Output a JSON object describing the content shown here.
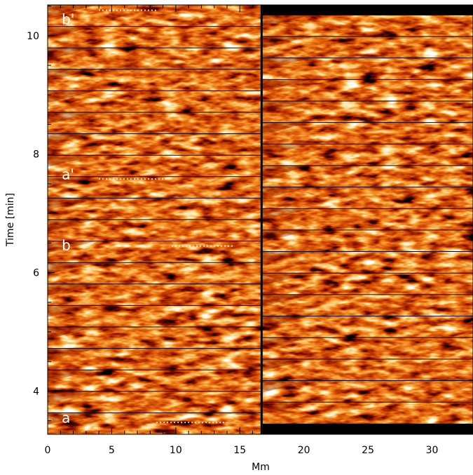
{
  "chart_data": {
    "type": "heatmap",
    "title": "",
    "xlabel": "Mm",
    "ylabel": "Time [min]",
    "xlim": [
      0,
      33.2
    ],
    "ylim": [
      3.27,
      10.52
    ],
    "x_ticks": [
      0,
      5,
      10,
      15,
      20,
      25,
      30
    ],
    "y_ticks": [
      4,
      6,
      8,
      10
    ],
    "x_tick_labels": [
      "0",
      "5",
      "10",
      "15",
      "20",
      "25",
      "30"
    ],
    "y_tick_labels": [
      "4",
      "6",
      "8",
      "10"
    ],
    "column_split_x": 16.7,
    "strips": {
      "left_column": {
        "count": 20,
        "t_start": 3.27,
        "t_end": 10.52
      },
      "right_column": {
        "count": 19,
        "t_start": 3.45,
        "t_end": 10.35
      }
    },
    "colormap": [
      "#000000",
      "#7a0d00",
      "#c23a00",
      "#e66a10",
      "#f7a63a",
      "#ffe2a0",
      "#ffffff"
    ],
    "annotations": [
      {
        "label": "b'",
        "x": 1.1,
        "t": 10.28
      },
      {
        "label": "a'",
        "x": 1.1,
        "t": 7.66
      },
      {
        "label": "b",
        "x": 1.1,
        "t": 6.46
      },
      {
        "label": "a",
        "x": 1.1,
        "t": 3.55
      }
    ],
    "dotted_segments": [
      {
        "x1": 4.0,
        "x2": 8.5,
        "t": 10.43
      },
      {
        "x1": 4.0,
        "x2": 9.4,
        "t": 7.58
      },
      {
        "x1": 9.7,
        "x2": 14.5,
        "t": 6.45
      },
      {
        "x1": 8.5,
        "x2": 14.0,
        "t": 3.47
      }
    ]
  }
}
